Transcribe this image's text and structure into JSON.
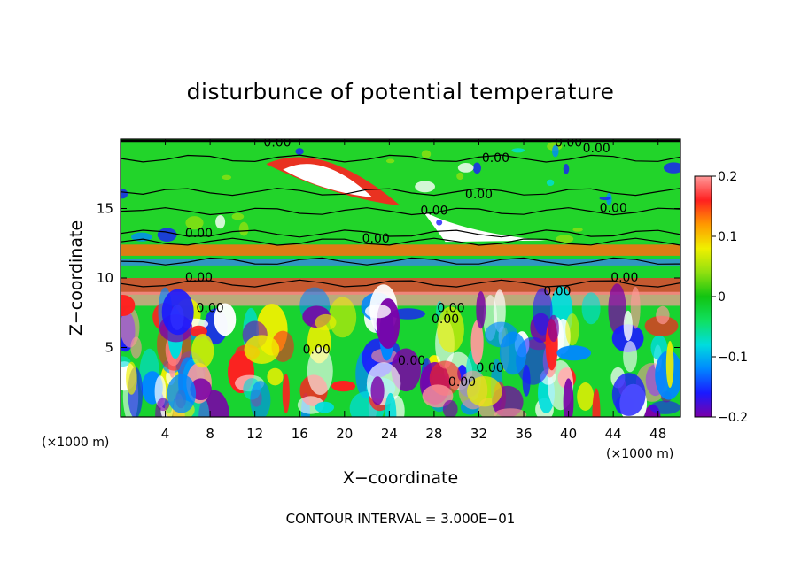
{
  "chart_data": {
    "type": "heatmap",
    "title": "disturbunce of potential temperature",
    "xlabel": "X−coordinate",
    "ylabel": "Z−coordinate",
    "x_unit": "(×1000 m)",
    "x_unit_right": "(×1000 m)",
    "footer": "CONTOUR INTERVAL = 3.000E−01",
    "xlim": [
      0,
      50
    ],
    "ylim": [
      0,
      20
    ],
    "xticks": [
      4,
      8,
      12,
      16,
      20,
      24,
      28,
      32,
      36,
      40,
      44,
      48
    ],
    "yticks": [
      5,
      10,
      15
    ],
    "colorbar": {
      "range": [
        -0.2,
        0.2
      ],
      "ticks": [
        {
          "value": 0.2,
          "label": "0.2"
        },
        {
          "value": 0.1,
          "label": "0.1"
        },
        {
          "value": 0,
          "label": "0"
        },
        {
          "value": -0.1,
          "label": "−0.1"
        },
        {
          "value": -0.2,
          "label": "−0.2"
        }
      ],
      "colors": [
        "#7a00a8",
        "#1a1aff",
        "#0088ff",
        "#00dddd",
        "#10e060",
        "#11c411",
        "#90e010",
        "#f0f000",
        "#ff9900",
        "#ff2020",
        "#ff9a9a"
      ]
    },
    "contour_labels": [
      {
        "x": 14.0,
        "y": 19.7,
        "text": "0.00"
      },
      {
        "x": 40.0,
        "y": 19.7,
        "text": "0.00"
      },
      {
        "x": 33.5,
        "y": 18.6,
        "text": "0.00"
      },
      {
        "x": 42.5,
        "y": 19.3,
        "text": "0.00"
      },
      {
        "x": 32.0,
        "y": 16.0,
        "text": "0.00"
      },
      {
        "x": 44.0,
        "y": 15.0,
        "text": "0.00"
      },
      {
        "x": 28.0,
        "y": 14.8,
        "text": "0.00"
      },
      {
        "x": 7.0,
        "y": 13.2,
        "text": "0.00"
      },
      {
        "x": 22.8,
        "y": 12.8,
        "text": "0.00"
      },
      {
        "x": 7.0,
        "y": 10.0,
        "text": "0.00"
      },
      {
        "x": 45.0,
        "y": 10.0,
        "text": "0.00"
      },
      {
        "x": 39.0,
        "y": 9.0,
        "text": "0.00"
      },
      {
        "x": 29.5,
        "y": 7.8,
        "text": "0.00"
      },
      {
        "x": 8.0,
        "y": 7.8,
        "text": "0.00"
      },
      {
        "x": 17.5,
        "y": 4.8,
        "text": "0.00"
      },
      {
        "x": 29.0,
        "y": 7.0,
        "text": "0.00"
      },
      {
        "x": 33.0,
        "y": 3.5,
        "text": "0.00"
      },
      {
        "x": 30.5,
        "y": 2.5,
        "text": "0.00"
      },
      {
        "x": 26.0,
        "y": 4.0,
        "text": "0.00"
      }
    ]
  }
}
